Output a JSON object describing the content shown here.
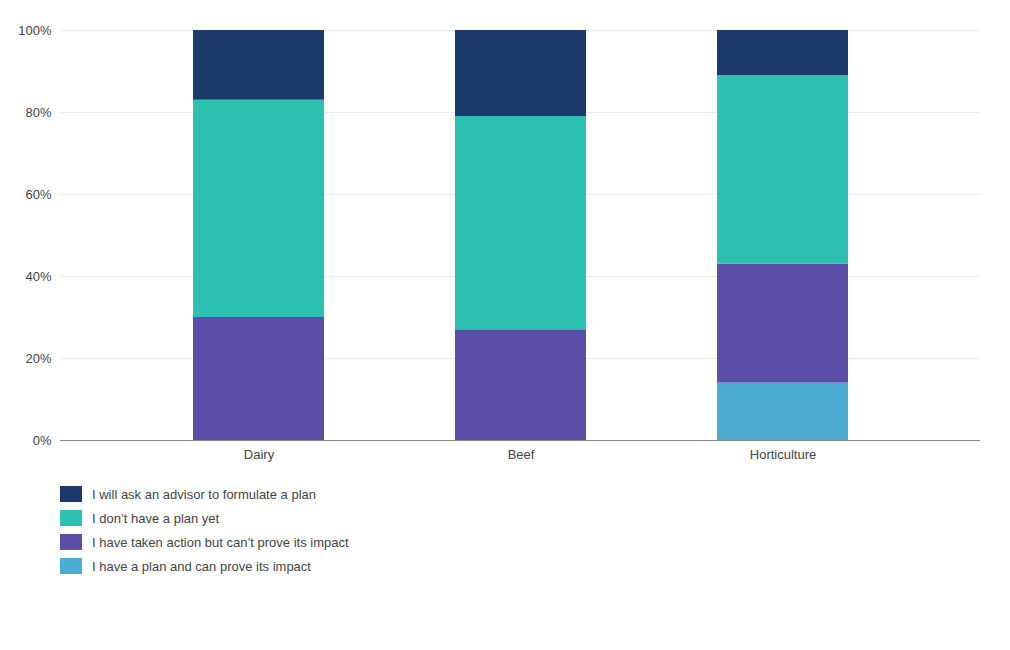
{
  "chart_data": {
    "type": "bar",
    "stacked": true,
    "categories": [
      "Dairy",
      "Beef",
      "Horticulture"
    ],
    "series": [
      {
        "name": "I have a plan and can prove its impact",
        "color": "#4BADD4",
        "values": [
          0,
          0,
          14
        ]
      },
      {
        "name": "I have taken action but can’t prove its impact",
        "color": "#5B4EA8",
        "values": [
          30,
          27,
          29
        ]
      },
      {
        "name": "I don’t have a plan yet",
        "color": "#2CC0B0",
        "values": [
          53,
          52,
          46
        ]
      },
      {
        "name": "I will ask an advisor to formulate a plan",
        "color": "#1B3A6B",
        "values": [
          17,
          21,
          11
        ]
      }
    ],
    "ylim": [
      0,
      100
    ],
    "yticks": [
      {
        "value": 0,
        "label": "0%"
      },
      {
        "value": 20,
        "label": "20%"
      },
      {
        "value": 40,
        "label": "40%"
      },
      {
        "value": 60,
        "label": "60%"
      },
      {
        "value": 80,
        "label": "80%"
      },
      {
        "value": 100,
        "label": "100%"
      }
    ],
    "grid": true,
    "legend": "bottom"
  }
}
